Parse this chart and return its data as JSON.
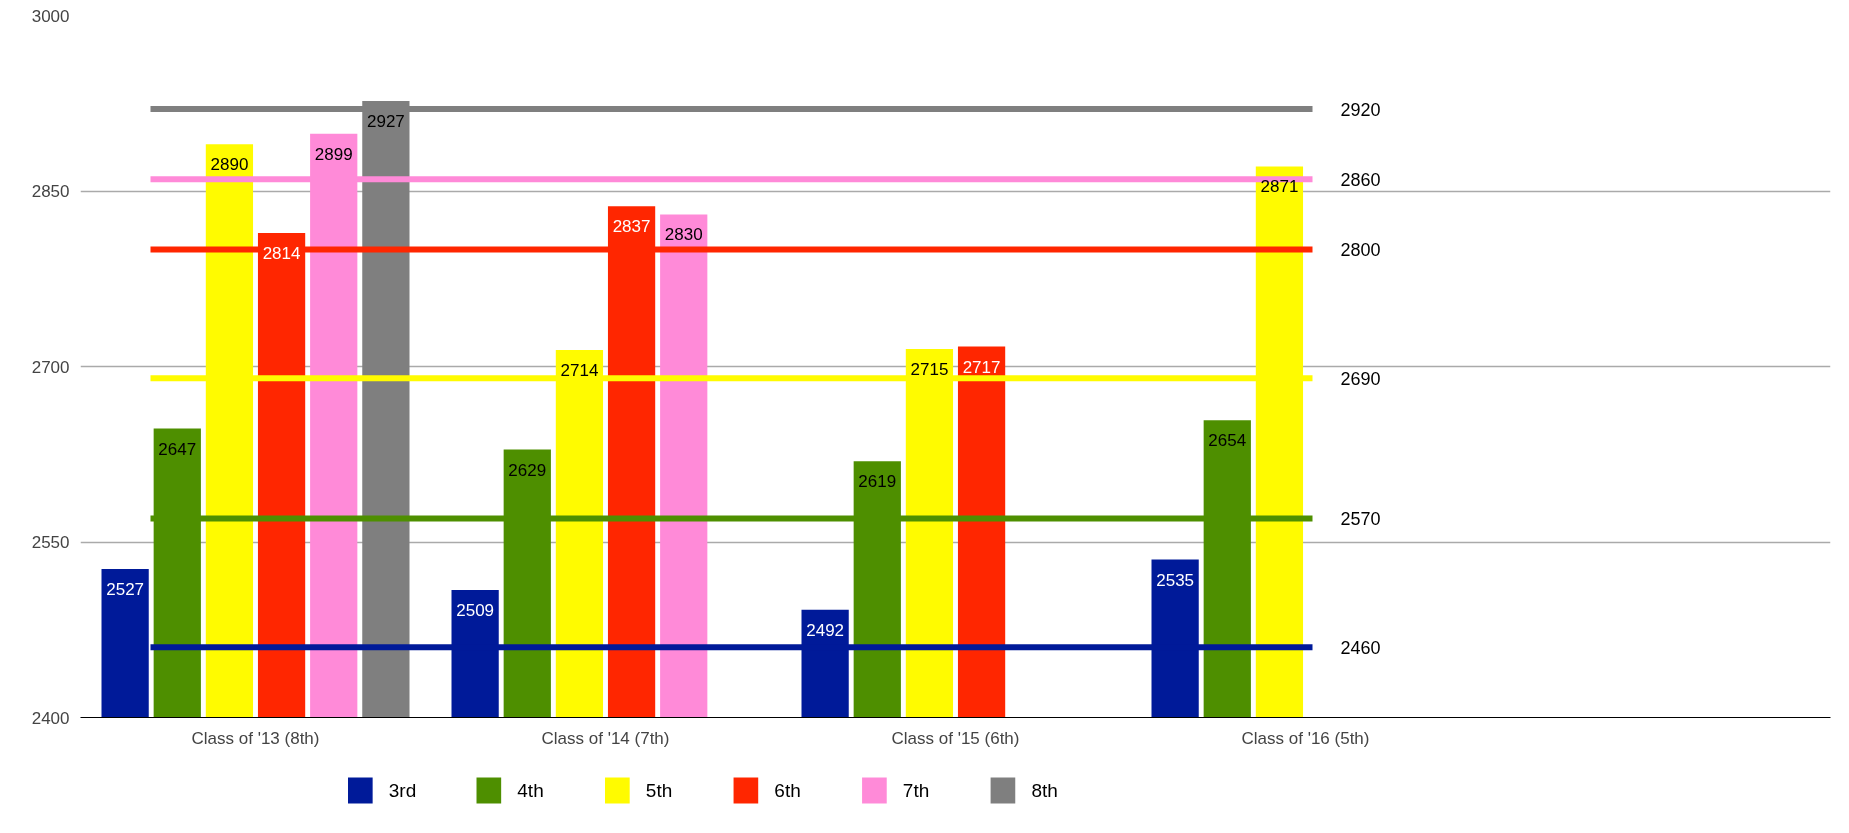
{
  "chart_data": {
    "type": "bar",
    "categories": [
      "Class of '13 (8th)",
      "Class of '14 (7th)",
      "Class of '15 (6th)",
      "Class of '16 (5th)",
      null
    ],
    "series": [
      {
        "name": "3rd",
        "color": "#001a99",
        "values": [
          2527,
          2509,
          2492,
          2535,
          null
        ]
      },
      {
        "name": "4th",
        "color": "#4e8f00",
        "values": [
          2647,
          2629,
          2619,
          2654,
          null
        ]
      },
      {
        "name": "5th",
        "color": "#fffb00",
        "values": [
          2890,
          2714,
          2715,
          2871,
          null
        ]
      },
      {
        "name": "6th",
        "color": "#ff2600",
        "values": [
          2814,
          2837,
          2717,
          null,
          null
        ]
      },
      {
        "name": "7th",
        "color": "#ff8ad8",
        "values": [
          2899,
          2830,
          null,
          null,
          null
        ]
      },
      {
        "name": "8th",
        "color": "#7f7f7f",
        "values": [
          2927,
          null,
          null,
          null,
          null
        ]
      }
    ],
    "ylim": [
      2400,
      3000
    ],
    "yticks": [
      2400,
      2550,
      2700,
      2850,
      3000
    ],
    "ref_lines": [
      {
        "axis": "y",
        "value": 2920,
        "label": "2920",
        "color": "#7f7f7f"
      },
      {
        "axis": "y",
        "value": 2860,
        "label": "2860",
        "color": "#ff8ad8"
      },
      {
        "axis": "y",
        "value": 2800,
        "label": "2800",
        "color": "#ff2600"
      },
      {
        "axis": "y",
        "value": 2690,
        "label": "2690",
        "color": "#fffb00"
      },
      {
        "axis": "y",
        "value": 2570,
        "label": "2570",
        "color": "#4e8f00"
      },
      {
        "axis": "y",
        "value": 2460,
        "label": "2460",
        "color": "#001a99"
      }
    ],
    "data_labels": true,
    "grid": "y",
    "legend": "bottom"
  }
}
